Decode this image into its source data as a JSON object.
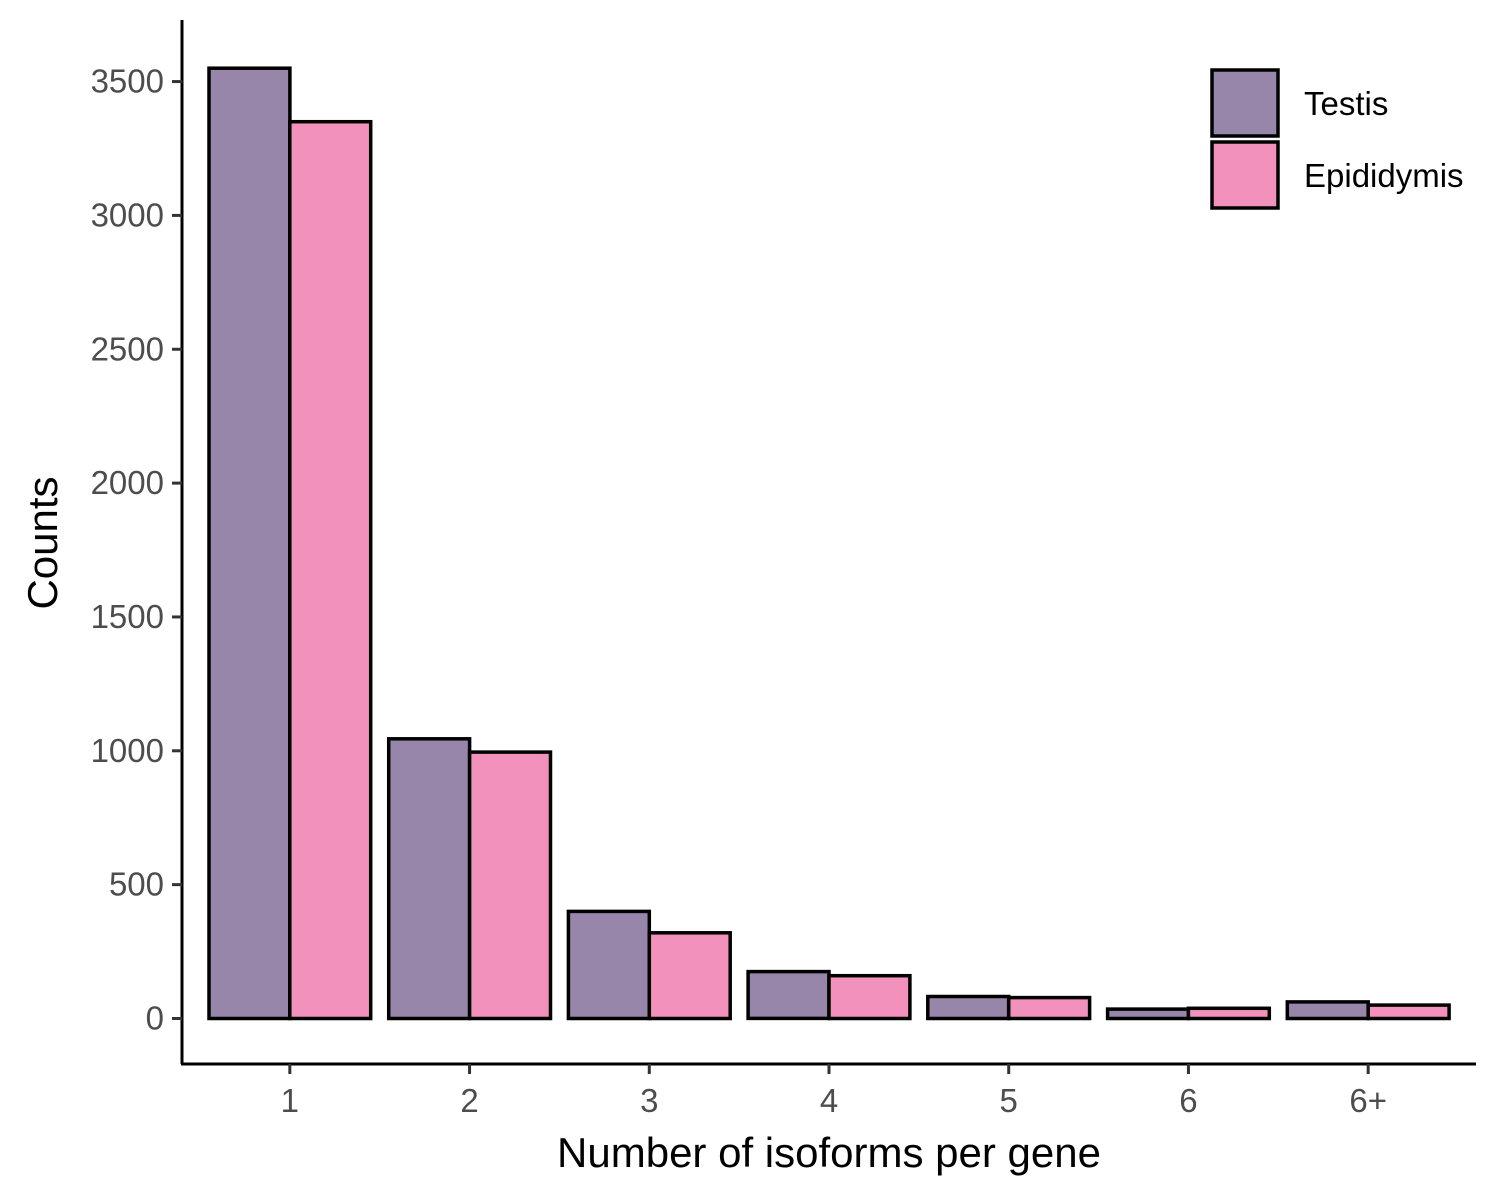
{
  "chart_data": {
    "type": "bar",
    "title": "",
    "xlabel": "Number of isoforms per gene",
    "ylabel": "Counts",
    "categories": [
      "1",
      "2",
      "3",
      "4",
      "5",
      "6",
      "6+"
    ],
    "series": [
      {
        "name": "Testis",
        "color": "#9786aa",
        "values": [
          3550,
          1045,
          400,
          175,
          82,
          35,
          62
        ]
      },
      {
        "name": "Epididymis",
        "color": "#f291bb",
        "values": [
          3350,
          995,
          320,
          160,
          78,
          38,
          50
        ]
      }
    ],
    "ylim": [
      -170,
      3730
    ],
    "yticks": [
      0,
      500,
      1000,
      1500,
      2000,
      2500,
      3000,
      3500
    ],
    "grid": false,
    "legend_position": "top-right"
  }
}
